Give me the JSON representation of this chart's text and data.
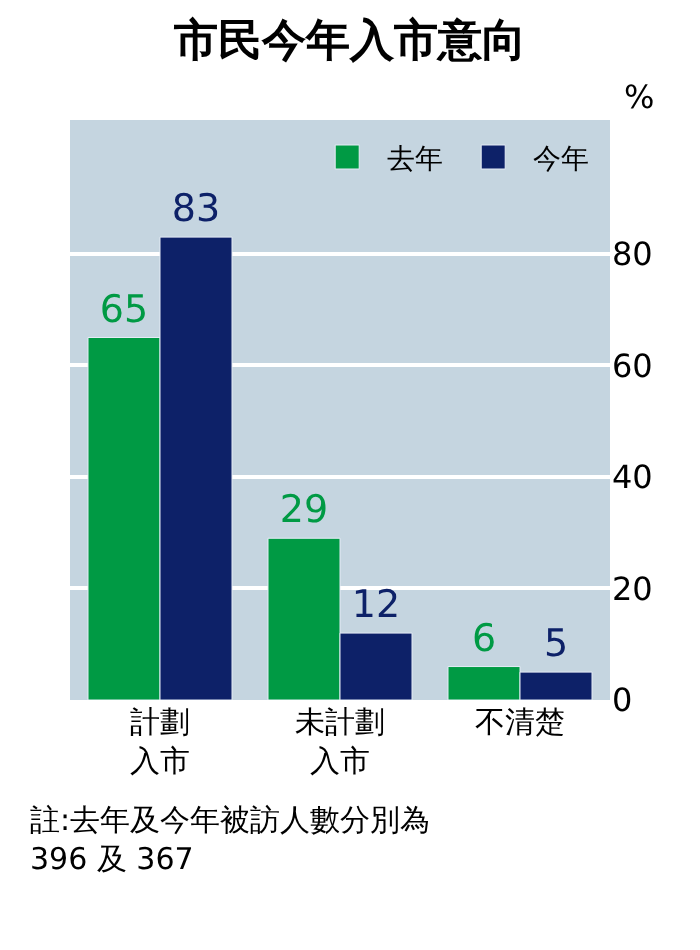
{
  "chart_data": {
    "type": "bar",
    "title": "市民今年入市意向",
    "ylabel": "%",
    "categories": [
      "計劃入市",
      "未計劃入市",
      "不清楚"
    ],
    "series": [
      {
        "name": "去年",
        "color": "#009a44",
        "values": [
          65,
          29,
          6
        ]
      },
      {
        "name": "今年",
        "color": "#0d2168",
        "values": [
          83,
          12,
          5
        ]
      }
    ],
    "ylim": [
      0,
      104
    ],
    "yticks": [
      0,
      20,
      40,
      60,
      80
    ],
    "grid": "y",
    "legend": "top right",
    "data_labels": true,
    "annotations": [
      "註:去年及今年被訪人數分別為\n396 及 367"
    ]
  }
}
